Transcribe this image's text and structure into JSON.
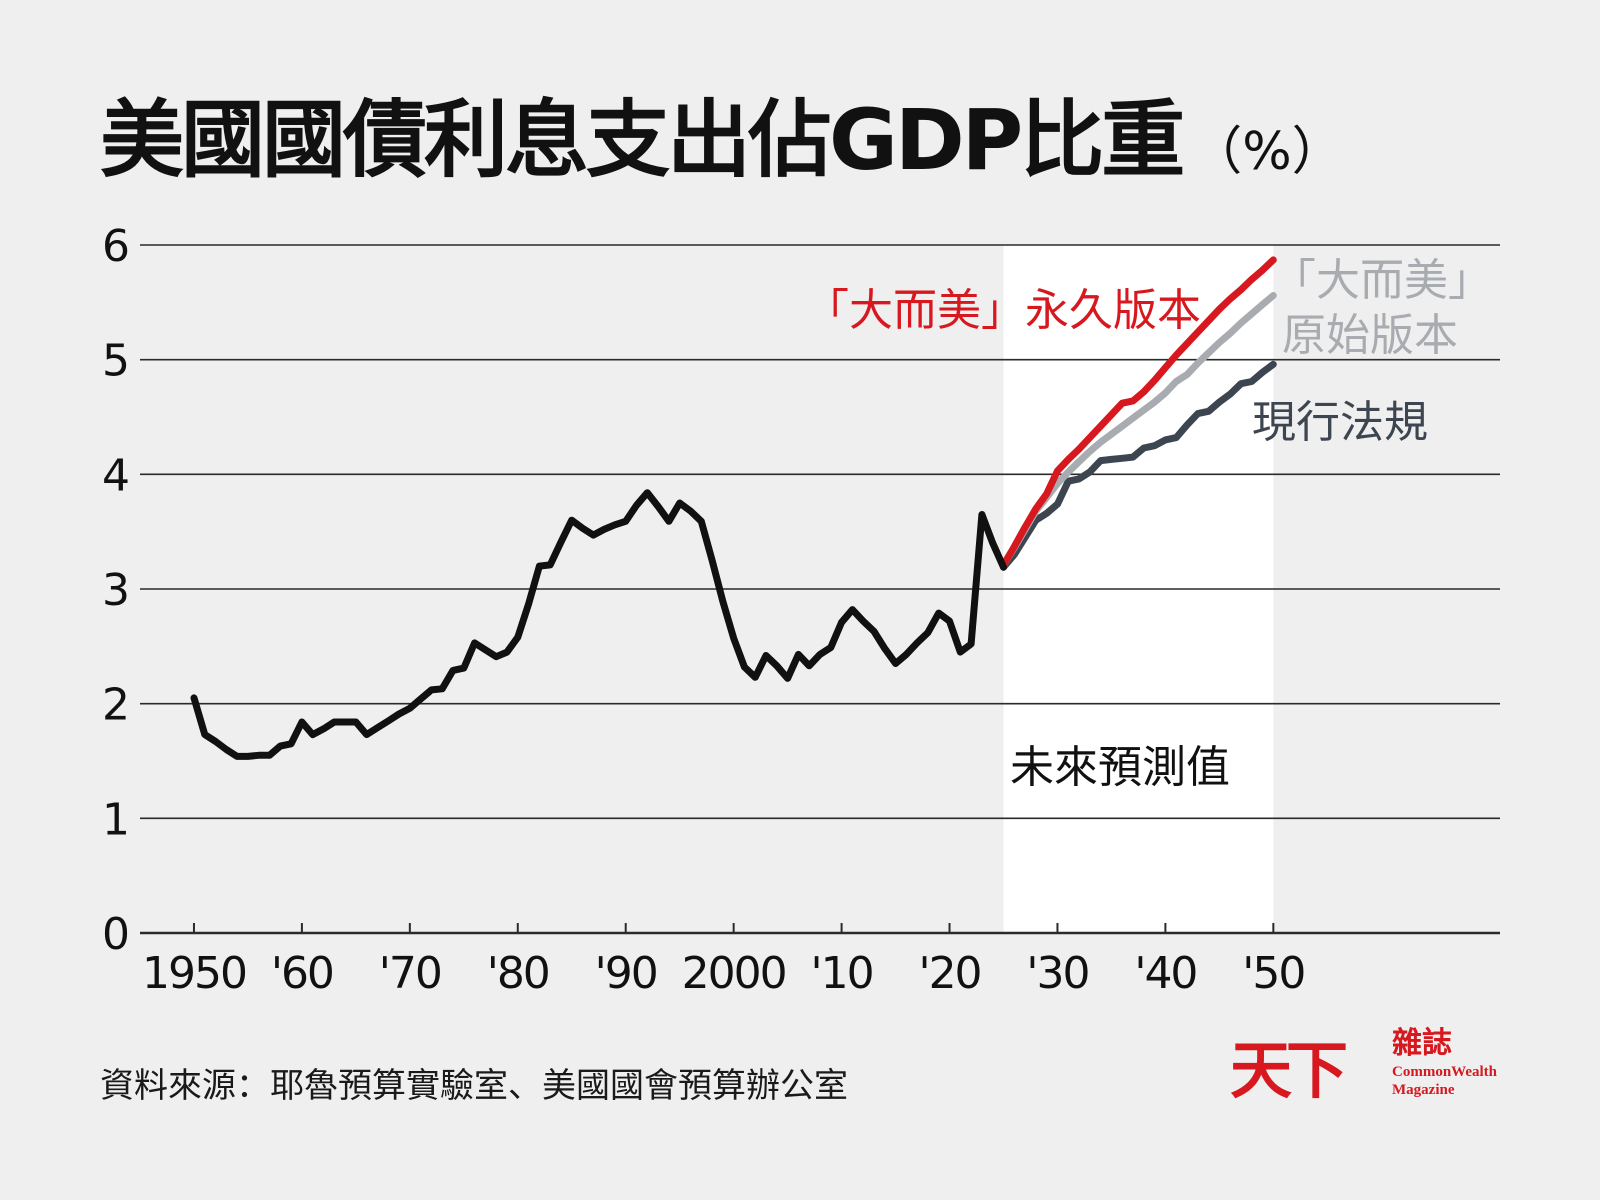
{
  "chart_data": {
    "type": "line",
    "title": "美國國債利息支出佔GDP比重",
    "unit": "（%）",
    "ylim": [
      0,
      6
    ],
    "yticks": [
      "0",
      "1",
      "2",
      "3",
      "4",
      "5",
      "6"
    ],
    "xlim": [
      1945,
      2071
    ],
    "xticks": [
      {
        "value": 1950,
        "label": "1950"
      },
      {
        "value": 1960,
        "label": "'60"
      },
      {
        "value": 1970,
        "label": "'70"
      },
      {
        "value": 1980,
        "label": "'80"
      },
      {
        "value": 1990,
        "label": "'90"
      },
      {
        "value": 2000,
        "label": "2000"
      },
      {
        "value": 2010,
        "label": "'10"
      },
      {
        "value": 2020,
        "label": "'20"
      },
      {
        "value": 2030,
        "label": "'30"
      },
      {
        "value": 2040,
        "label": "'40"
      },
      {
        "value": 2050,
        "label": "'50"
      }
    ],
    "grid": true,
    "projection": {
      "start": 2025,
      "end": 2050,
      "label": "未來預測值"
    },
    "colors": {
      "historical": "#111111",
      "current": "#3d4650",
      "original": "#a8acb0",
      "permanent": "#d7181f"
    },
    "series": [
      {
        "name": "",
        "key": "historical",
        "x": [
          1950,
          1951,
          1952,
          1953,
          1954,
          1955,
          1956,
          1957,
          1958,
          1959,
          1960,
          1961,
          1962,
          1963,
          1964,
          1965,
          1966,
          1967,
          1968,
          1969,
          1970,
          1971,
          1972,
          1973,
          1974,
          1975,
          1976,
          1977,
          1978,
          1979,
          1980,
          1981,
          1982,
          1983,
          1984,
          1985,
          1986,
          1987,
          1988,
          1989,
          1990,
          1991,
          1992,
          1993,
          1994,
          1995,
          1996,
          1997,
          1998,
          1999,
          2000,
          2001,
          2002,
          2003,
          2004,
          2005,
          2006,
          2007,
          2008,
          2009,
          2010,
          2011,
          2012,
          2013,
          2014,
          2015,
          2016,
          2017,
          2018,
          2019,
          2020,
          2021,
          2022,
          2023,
          2024,
          2025
        ],
        "values": [
          2.05,
          1.73,
          1.67,
          1.6,
          1.54,
          1.54,
          1.55,
          1.55,
          1.63,
          1.65,
          1.84,
          1.73,
          1.78,
          1.84,
          1.84,
          1.84,
          1.73,
          1.79,
          1.85,
          1.91,
          1.96,
          2.04,
          2.12,
          2.13,
          2.29,
          2.31,
          2.53,
          2.47,
          2.41,
          2.45,
          2.58,
          2.87,
          3.2,
          3.21,
          3.41,
          3.6,
          3.53,
          3.47,
          3.52,
          3.56,
          3.59,
          3.73,
          3.84,
          3.72,
          3.59,
          3.75,
          3.68,
          3.59,
          3.25,
          2.89,
          2.57,
          2.32,
          2.23,
          2.42,
          2.33,
          2.22,
          2.43,
          2.33,
          2.43,
          2.49,
          2.71,
          2.82,
          2.72,
          2.63,
          2.48,
          2.35,
          2.43,
          2.53,
          2.62,
          2.79,
          2.72,
          2.45,
          2.52,
          3.65,
          3.4,
          3.19
        ]
      },
      {
        "name": "現行法規",
        "key": "current",
        "x": [
          2025,
          2026,
          2027,
          2028,
          2029,
          2030,
          2031,
          2032,
          2033,
          2034,
          2035,
          2036,
          2037,
          2038,
          2039,
          2040,
          2041,
          2042,
          2043,
          2044,
          2045,
          2046,
          2047,
          2048,
          2049,
          2050
        ],
        "values": [
          3.19,
          3.3,
          3.45,
          3.6,
          3.66,
          3.74,
          3.94,
          3.96,
          4.02,
          4.12,
          4.13,
          4.14,
          4.15,
          4.23,
          4.25,
          4.3,
          4.32,
          4.43,
          4.53,
          4.55,
          4.63,
          4.7,
          4.79,
          4.81,
          4.89,
          4.96
        ]
      },
      {
        "name": "「大而美」原始版本",
        "key": "original",
        "x": [
          2025,
          2026,
          2027,
          2028,
          2029,
          2030,
          2031,
          2032,
          2033,
          2034,
          2035,
          2036,
          2037,
          2038,
          2039,
          2040,
          2041,
          2042,
          2043,
          2044,
          2045,
          2046,
          2047,
          2048,
          2049,
          2050
        ],
        "values": [
          3.21,
          3.36,
          3.52,
          3.68,
          3.8,
          3.92,
          4.02,
          4.11,
          4.2,
          4.28,
          4.35,
          4.42,
          4.49,
          4.56,
          4.63,
          4.71,
          4.81,
          4.87,
          4.97,
          5.06,
          5.15,
          5.23,
          5.32,
          5.4,
          5.48,
          5.56
        ]
      },
      {
        "name": "「大而美」永久版本",
        "key": "permanent",
        "x": [
          2025,
          2026,
          2027,
          2028,
          2029,
          2030,
          2031,
          2032,
          2033,
          2034,
          2035,
          2036,
          2037,
          2038,
          2039,
          2040,
          2041,
          2042,
          2043,
          2044,
          2045,
          2046,
          2047,
          2048,
          2049,
          2050
        ],
        "values": [
          3.21,
          3.37,
          3.54,
          3.7,
          3.83,
          4.03,
          4.13,
          4.22,
          4.32,
          4.42,
          4.52,
          4.62,
          4.64,
          4.72,
          4.82,
          4.93,
          5.04,
          5.14,
          5.24,
          5.34,
          5.44,
          5.53,
          5.61,
          5.7,
          5.78,
          5.87
        ]
      }
    ],
    "annotations": {
      "permanent_label": "「大而美」永久版本",
      "original_label_line1": "「大而美」",
      "original_label_line2": "原始版本",
      "current_label": "現行法規"
    }
  },
  "source": "資料來源：耶魯預算實驗室、美國國會預算辦公室",
  "brand": {
    "mark": "天下",
    "zh": "雜誌",
    "en_line1": "CommonWealth",
    "en_line2": "Magazine"
  }
}
